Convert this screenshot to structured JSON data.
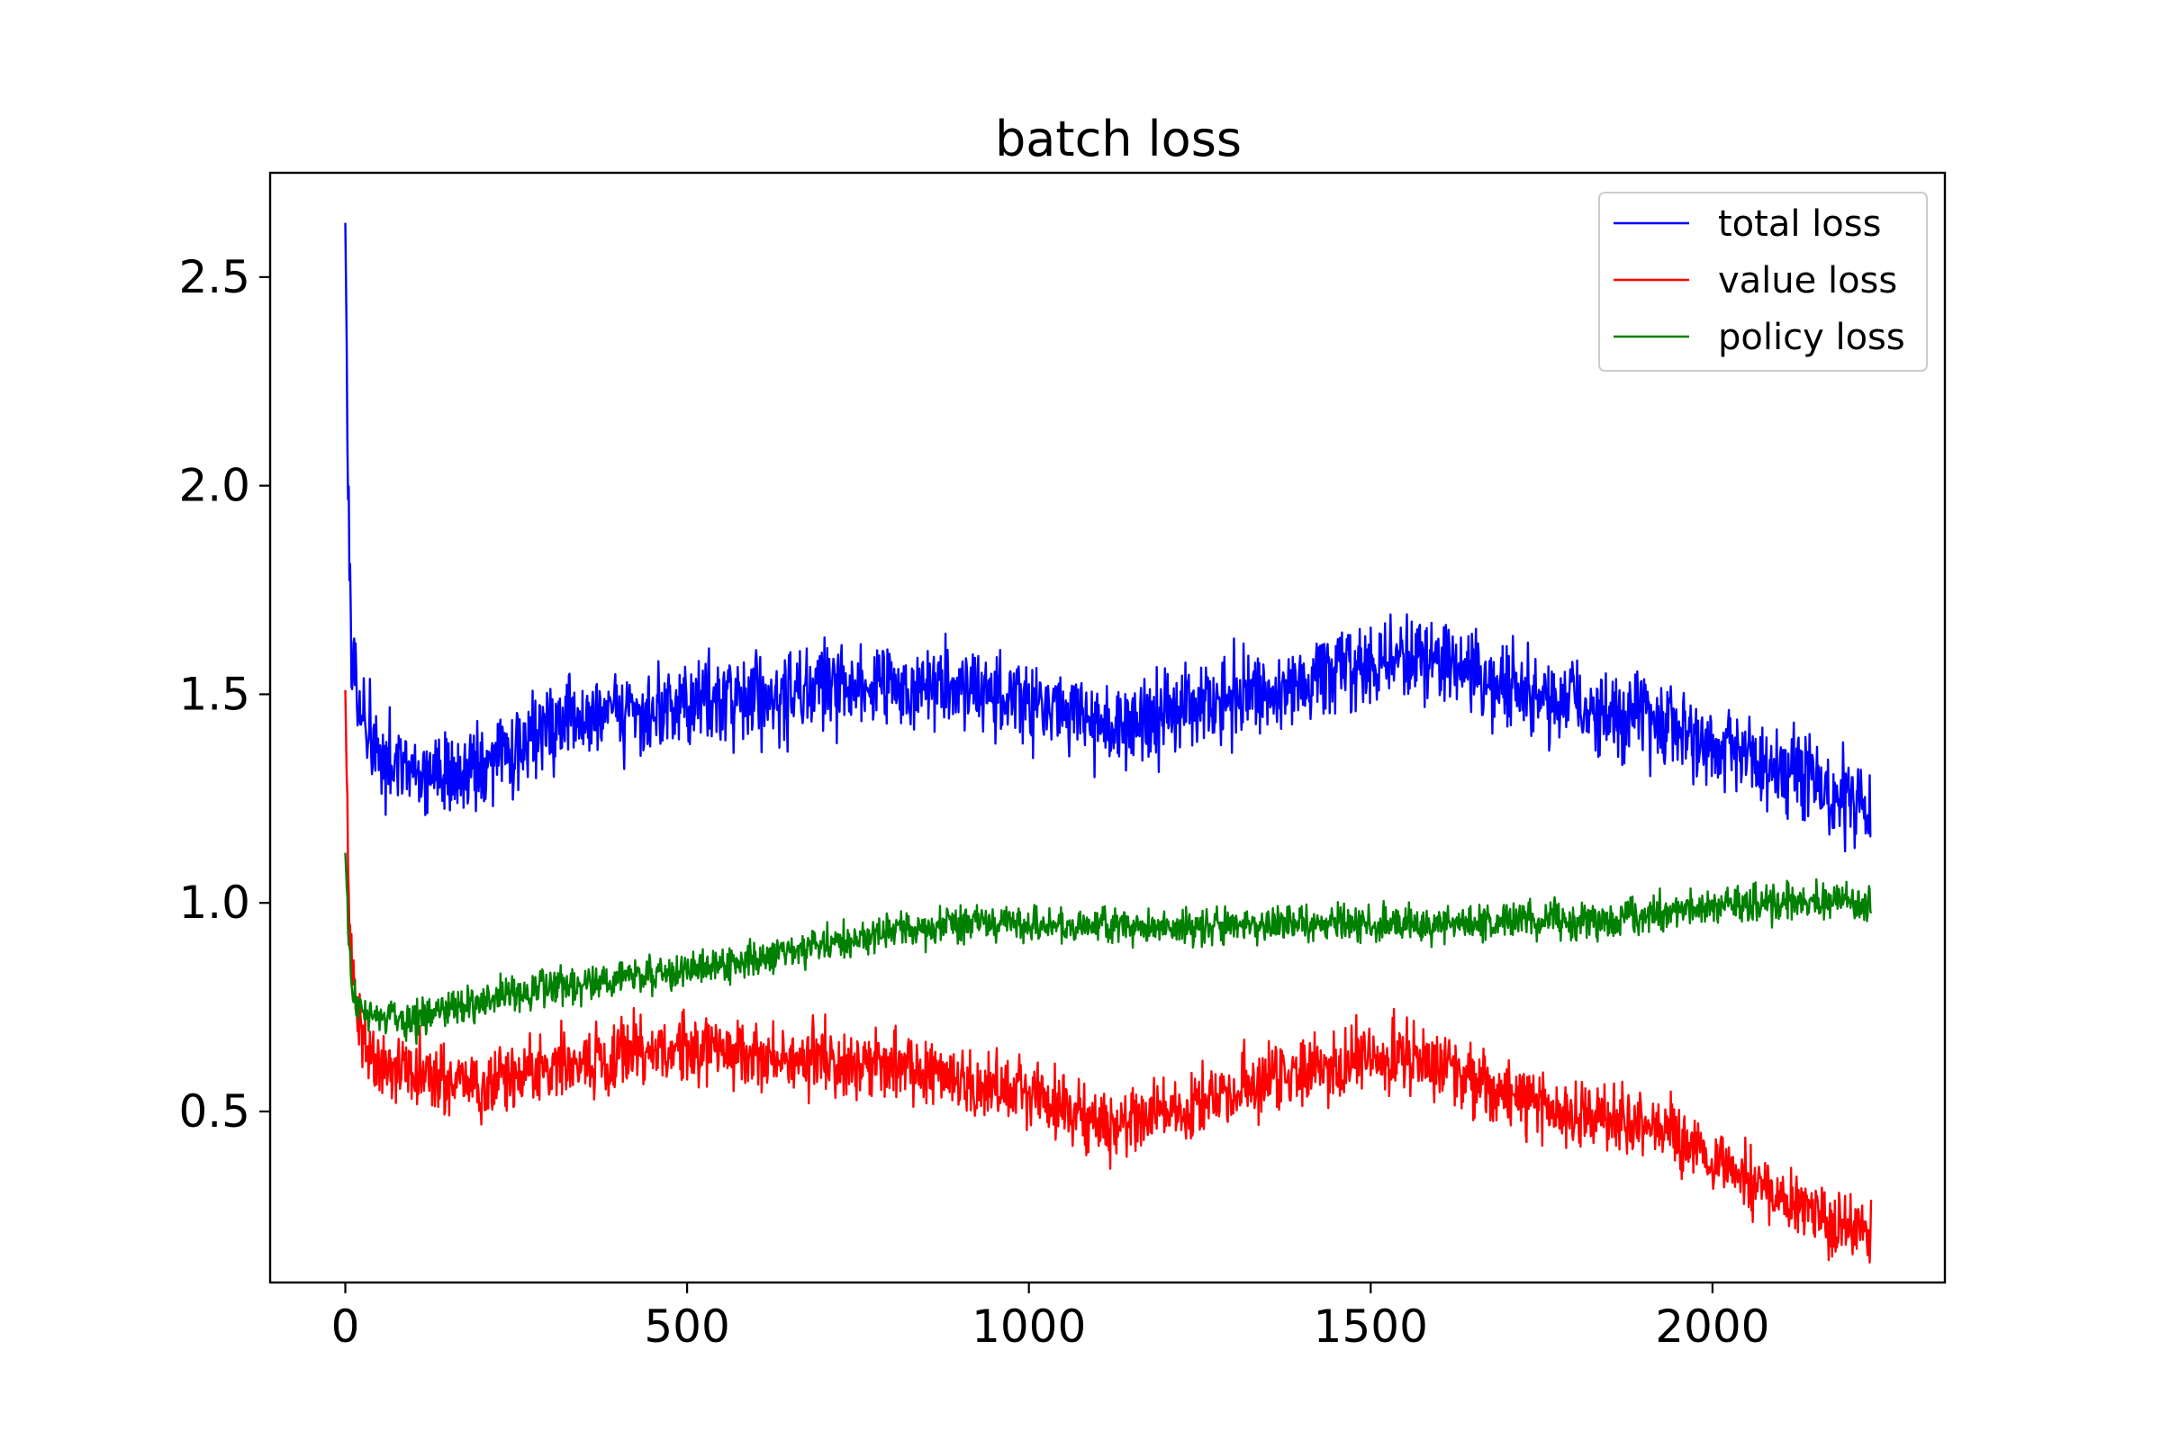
{
  "chart_data": {
    "type": "line",
    "title": "batch loss",
    "xlabel": "",
    "ylabel": "",
    "xlim": [
      -110,
      2340
    ],
    "ylim": [
      0.09,
      2.75
    ],
    "x_ticks": [
      0,
      500,
      1000,
      1500,
      2000
    ],
    "x_tick_labels": [
      "0",
      "500",
      "1000",
      "1500",
      "2000"
    ],
    "y_ticks": [
      0.5,
      1.0,
      1.5,
      2.0,
      2.5
    ],
    "y_tick_labels": [
      "0.5",
      "1.0",
      "1.5",
      "2.0",
      "2.5"
    ],
    "grid": false,
    "legend_position": "upper right",
    "legend": [
      "total loss",
      "value loss",
      "policy loss"
    ],
    "colors": {
      "total loss": "#0000ff",
      "value loss": "#ff0000",
      "policy loss": "#008000"
    },
    "noise_amplitude": {
      "total loss": 0.05,
      "value loss": 0.04,
      "policy loss": 0.022
    },
    "x_max": 2232,
    "series": [
      {
        "name": "total loss",
        "color": "#0000ff",
        "x": [
          0,
          3,
          6,
          10,
          15,
          20,
          30,
          50,
          75,
          100,
          150,
          200,
          250,
          300,
          350,
          400,
          450,
          500,
          550,
          600,
          650,
          700,
          750,
          800,
          850,
          900,
          950,
          1000,
          1050,
          1100,
          1150,
          1200,
          1250,
          1300,
          1350,
          1400,
          1450,
          1500,
          1550,
          1600,
          1650,
          1700,
          1750,
          1800,
          1850,
          1900,
          1950,
          2000,
          2050,
          2100,
          2150,
          2200,
          2232
        ],
        "y": [
          2.63,
          2.2,
          1.85,
          1.62,
          1.55,
          1.48,
          1.4,
          1.34,
          1.32,
          1.3,
          1.3,
          1.32,
          1.37,
          1.42,
          1.44,
          1.45,
          1.46,
          1.48,
          1.49,
          1.5,
          1.5,
          1.51,
          1.52,
          1.53,
          1.52,
          1.52,
          1.5,
          1.48,
          1.47,
          1.43,
          1.43,
          1.45,
          1.47,
          1.49,
          1.51,
          1.53,
          1.55,
          1.57,
          1.58,
          1.57,
          1.55,
          1.52,
          1.49,
          1.47,
          1.45,
          1.46,
          1.42,
          1.38,
          1.35,
          1.32,
          1.28,
          1.25,
          1.22
        ]
      },
      {
        "name": "value loss",
        "color": "#ff0000",
        "x": [
          0,
          3,
          6,
          10,
          15,
          20,
          30,
          50,
          75,
          100,
          150,
          200,
          250,
          300,
          350,
          400,
          450,
          500,
          550,
          600,
          650,
          700,
          750,
          800,
          850,
          900,
          950,
          1000,
          1050,
          1100,
          1150,
          1200,
          1250,
          1300,
          1350,
          1400,
          1450,
          1500,
          1550,
          1600,
          1650,
          1700,
          1750,
          1800,
          1850,
          1900,
          1950,
          2000,
          2050,
          2100,
          2150,
          2200,
          2232
        ],
        "y": [
          1.51,
          1.2,
          0.95,
          0.82,
          0.75,
          0.7,
          0.66,
          0.62,
          0.6,
          0.59,
          0.58,
          0.57,
          0.59,
          0.61,
          0.62,
          0.63,
          0.64,
          0.65,
          0.65,
          0.64,
          0.63,
          0.62,
          0.61,
          0.6,
          0.59,
          0.57,
          0.56,
          0.54,
          0.52,
          0.47,
          0.47,
          0.5,
          0.52,
          0.55,
          0.58,
          0.6,
          0.62,
          0.63,
          0.63,
          0.6,
          0.57,
          0.54,
          0.51,
          0.49,
          0.47,
          0.48,
          0.43,
          0.38,
          0.34,
          0.3,
          0.26,
          0.23,
          0.21
        ]
      },
      {
        "name": "policy loss",
        "color": "#008000",
        "x": [
          0,
          3,
          6,
          10,
          15,
          20,
          30,
          50,
          75,
          100,
          150,
          200,
          250,
          300,
          350,
          400,
          450,
          500,
          550,
          600,
          650,
          700,
          750,
          800,
          850,
          900,
          950,
          1000,
          1050,
          1100,
          1150,
          1200,
          1250,
          1300,
          1350,
          1400,
          1450,
          1500,
          1550,
          1600,
          1650,
          1700,
          1750,
          1800,
          1850,
          1900,
          1950,
          2000,
          2050,
          2100,
          2150,
          2200,
          2232
        ],
        "y": [
          1.12,
          1.0,
          0.88,
          0.8,
          0.77,
          0.75,
          0.73,
          0.72,
          0.72,
          0.72,
          0.74,
          0.76,
          0.78,
          0.8,
          0.81,
          0.82,
          0.83,
          0.84,
          0.85,
          0.87,
          0.89,
          0.9,
          0.91,
          0.93,
          0.94,
          0.95,
          0.95,
          0.95,
          0.95,
          0.95,
          0.94,
          0.94,
          0.94,
          0.95,
          0.95,
          0.95,
          0.95,
          0.95,
          0.95,
          0.95,
          0.95,
          0.96,
          0.96,
          0.96,
          0.96,
          0.97,
          0.98,
          0.99,
          0.99,
          1.0,
          1.0,
          1.0,
          1.0
        ]
      }
    ]
  }
}
